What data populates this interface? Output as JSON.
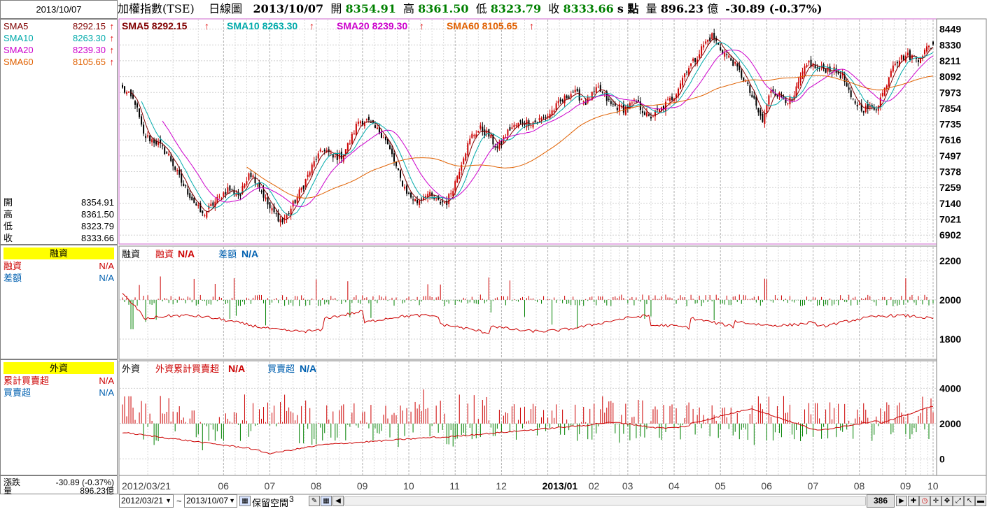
{
  "date_box": "2013/10/07",
  "header": {
    "title": "加權指數(TSE)",
    "period": "日線圖",
    "date": "2013/10/07",
    "open_label": "開",
    "open": "8354.91",
    "high_label": "高",
    "high": "8361.50",
    "low_label": "低",
    "low": "8323.79",
    "close_label": "收",
    "close": "8333.66",
    "unit": "s 點",
    "volume_label": "量",
    "volume": "896.23",
    "volume_unit": "億",
    "change": "-30.89 (-0.37%)"
  },
  "left": {
    "sma": [
      {
        "label": "SMA5",
        "value": "8292.15",
        "color": "#800000"
      },
      {
        "label": "SMA10",
        "value": "8263.30",
        "color": "#00aaaa"
      },
      {
        "label": "SMA20",
        "value": "8239.30",
        "color": "#cc00cc"
      },
      {
        "label": "SMA60",
        "value": "8105.65",
        "color": "#e06000"
      }
    ],
    "ohlc": [
      {
        "label": "開",
        "value": "8354.91"
      },
      {
        "label": "高",
        "value": "8361.50"
      },
      {
        "label": "低",
        "value": "8323.79"
      },
      {
        "label": "收",
        "value": "8333.66"
      }
    ],
    "margin_header": "融資",
    "margin_rows": [
      {
        "label": "融資",
        "value": "N/A",
        "color": "#cc0000"
      },
      {
        "label": "差額",
        "value": "N/A",
        "color": "#0060b0"
      }
    ],
    "foreign_header": "外資",
    "foreign_rows": [
      {
        "label": "累計買賣超",
        "value": "N/A",
        "color": "#cc0000"
      },
      {
        "label": "買賣超",
        "value": "N/A",
        "color": "#0060b0"
      }
    ],
    "bottom_rows": [
      {
        "label": "漲跌",
        "value": "-30.89 (-0.37%)"
      },
      {
        "label": "量",
        "value": "896.23億"
      }
    ]
  },
  "main_legend": [
    {
      "text": "SMA5 8292.15",
      "color": "#800000"
    },
    {
      "text": "SMA10 8263.30",
      "color": "#00aaaa"
    },
    {
      "text": "SMA20 8239.30",
      "color": "#cc00cc"
    },
    {
      "text": "SMA60 8105.65",
      "color": "#e06000"
    }
  ],
  "margin_legend": {
    "title": "融資",
    "a": "融資",
    "a_val": "N/A",
    "b": "差額",
    "b_val": "N/A"
  },
  "foreign_legend": {
    "title": "外資",
    "a": "外資累計買賣超",
    "a_val": "N/A",
    "b": "買賣超",
    "b_val": "N/A"
  },
  "bottom": {
    "start_date": "2012/03/21",
    "tilde": "~",
    "end_date": "2013/10/07",
    "keep_space": "保留空間",
    "keep_value": "3",
    "count": "386"
  },
  "chart_data": [
    {
      "type": "candlestick",
      "ylim": [
        6840,
        8510
      ],
      "yticks": [
        8449,
        8330,
        8211,
        8092,
        7973,
        7854,
        7735,
        7616,
        7497,
        7378,
        7259,
        7140,
        7021,
        6902
      ],
      "x_tick_labels": [
        "2012/03/21",
        "06",
        "07",
        "08",
        "09",
        "10",
        "11",
        "12",
        "2013/01",
        "02",
        "03",
        "04",
        "05",
        "06",
        "07",
        "08",
        "09",
        "10"
      ],
      "close_anchors": [
        [
          0,
          8000
        ],
        [
          6,
          7900
        ],
        [
          10,
          7650
        ],
        [
          16,
          7600
        ],
        [
          22,
          7500
        ],
        [
          28,
          7300
        ],
        [
          34,
          7150
        ],
        [
          38,
          7050
        ],
        [
          44,
          7150
        ],
        [
          50,
          7250
        ],
        [
          56,
          7200
        ],
        [
          60,
          7380
        ],
        [
          64,
          7300
        ],
        [
          70,
          7100
        ],
        [
          76,
          7000
        ],
        [
          80,
          7100
        ],
        [
          86,
          7280
        ],
        [
          92,
          7480
        ],
        [
          96,
          7550
        ],
        [
          100,
          7480
        ],
        [
          104,
          7500
        ],
        [
          108,
          7600
        ],
        [
          112,
          7760
        ],
        [
          116,
          7760
        ],
        [
          120,
          7700
        ],
        [
          124,
          7650
        ],
        [
          128,
          7500
        ],
        [
          132,
          7320
        ],
        [
          136,
          7200
        ],
        [
          140,
          7150
        ],
        [
          144,
          7220
        ],
        [
          150,
          7150
        ],
        [
          154,
          7150
        ],
        [
          158,
          7300
        ],
        [
          162,
          7500
        ],
        [
          166,
          7650
        ],
        [
          170,
          7700
        ],
        [
          174,
          7650
        ],
        [
          178,
          7550
        ],
        [
          184,
          7700
        ],
        [
          190,
          7750
        ],
        [
          196,
          7750
        ],
        [
          202,
          7800
        ],
        [
          208,
          7900
        ],
        [
          214,
          7980
        ],
        [
          220,
          7900
        ],
        [
          226,
          8000
        ],
        [
          232,
          7880
        ],
        [
          238,
          7850
        ],
        [
          244,
          7900
        ],
        [
          250,
          7780
        ],
        [
          256,
          7850
        ],
        [
          262,
          7950
        ],
        [
          268,
          8150
        ],
        [
          272,
          8220
        ],
        [
          276,
          8330
        ],
        [
          280,
          8400
        ],
        [
          284,
          8300
        ],
        [
          290,
          8200
        ],
        [
          296,
          8050
        ],
        [
          300,
          7900
        ],
        [
          304,
          7750
        ],
        [
          308,
          8000
        ],
        [
          312,
          7950
        ],
        [
          318,
          7900
        ],
        [
          322,
          8080
        ],
        [
          326,
          8200
        ],
        [
          330,
          8150
        ],
        [
          336,
          8150
        ],
        [
          342,
          8100
        ],
        [
          346,
          7920
        ],
        [
          352,
          7850
        ],
        [
          358,
          7860
        ],
        [
          362,
          8000
        ],
        [
          366,
          8200
        ],
        [
          372,
          8250
        ],
        [
          378,
          8230
        ],
        [
          382,
          8300
        ],
        [
          385,
          8334
        ]
      ],
      "sma5": "8292.15",
      "sma10": "8263.30",
      "sma20": "8239.30",
      "sma60": "8105.65"
    },
    {
      "type": "bar+line",
      "name": "融資",
      "ylim": [
        1700,
        2260
      ],
      "yticks": [
        2200,
        2000,
        1800
      ]
    },
    {
      "type": "bar+line",
      "name": "外資",
      "ylim": [
        -900,
        5400
      ],
      "yticks": [
        4000,
        2000,
        0
      ]
    }
  ]
}
